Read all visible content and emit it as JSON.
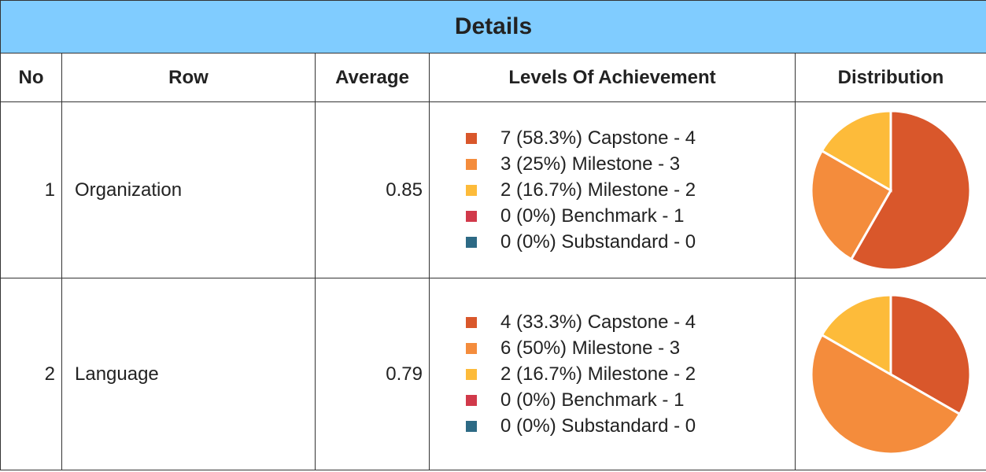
{
  "title": "Details",
  "table": {
    "headers": [
      "No",
      "Row",
      "Average",
      "Levels Of Achievement",
      "Distribution"
    ],
    "rows": [
      {
        "no": "1",
        "row": "Organization",
        "average": "0.85",
        "levels": [
          {
            "text": "7 (58.3%) Capstone - 4",
            "value": 58.3,
            "color": "#d9572b"
          },
          {
            "text": "3 (25%) Milestone - 3",
            "value": 25,
            "color": "#f48c3c"
          },
          {
            "text": "2 (16.7%) Milestone - 2",
            "value": 16.7,
            "color": "#fdbb3a"
          },
          {
            "text": "0 (0%) Benchmark - 1",
            "value": 0,
            "color": "#d1394a"
          },
          {
            "text": "0 (0%) Substandard - 0",
            "value": 0,
            "color": "#2d6a85"
          }
        ]
      },
      {
        "no": "2",
        "row": "Language",
        "average": "0.79",
        "levels": [
          {
            "text": "4 (33.3%) Capstone - 4",
            "value": 33.3,
            "color": "#d9572b"
          },
          {
            "text": "6 (50%) Milestone - 3",
            "value": 50,
            "color": "#f48c3c"
          },
          {
            "text": "2 (16.7%) Milestone - 2",
            "value": 16.7,
            "color": "#fdbb3a"
          },
          {
            "text": "0 (0%) Benchmark - 1",
            "value": 0,
            "color": "#d1394a"
          },
          {
            "text": "0 (0%) Substandard - 0",
            "value": 0,
            "color": "#2d6a85"
          }
        ]
      }
    ]
  }
}
